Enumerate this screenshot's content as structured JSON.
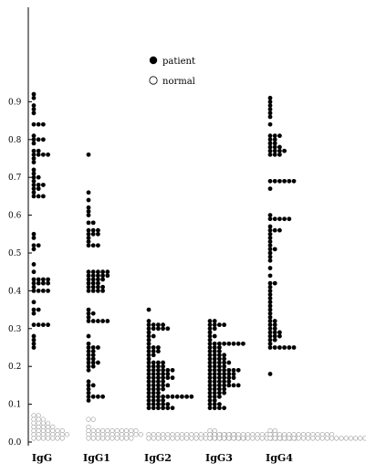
{
  "chart_data": {
    "type": "scatter",
    "subtype": "dot-plot",
    "title": "",
    "xlabel": "",
    "ylabel": "",
    "ylim": [
      0,
      0.95
    ],
    "y_ticks": [
      "0.0",
      "0.1",
      "0.2",
      "0.3",
      "0.4",
      "0.5",
      "0.6",
      "0.7",
      "0.8",
      "0.9"
    ],
    "categories": [
      "IgG",
      "IgG1",
      "IgG2",
      "IgG3",
      "IgG4"
    ],
    "grid": false,
    "legend": {
      "placement": "top-center",
      "entries": [
        "patient",
        "normal"
      ]
    },
    "series": [
      {
        "name": "patient",
        "marker": "filled-circle",
        "color": "#000000",
        "values": {
          "IgG": [
            0.92,
            0.91,
            0.89,
            0.88,
            0.87,
            0.84,
            0.84,
            0.84,
            0.81,
            0.8,
            0.8,
            0.8,
            0.79,
            0.77,
            0.77,
            0.76,
            0.76,
            0.76,
            0.76,
            0.75,
            0.74,
            0.72,
            0.71,
            0.7,
            0.7,
            0.69,
            0.68,
            0.68,
            0.68,
            0.67,
            0.67,
            0.66,
            0.65,
            0.65,
            0.65,
            0.55,
            0.54,
            0.52,
            0.52,
            0.51,
            0.47,
            0.45,
            0.43,
            0.43,
            0.43,
            0.43,
            0.42,
            0.42,
            0.42,
            0.42,
            0.41,
            0.4,
            0.4,
            0.4,
            0.4,
            0.37,
            0.35,
            0.35,
            0.34,
            0.31,
            0.31,
            0.31,
            0.31,
            0.28,
            0.27,
            0.26,
            0.25
          ],
          "IgG1": [
            0.76,
            0.66,
            0.64,
            0.62,
            0.61,
            0.6,
            0.58,
            0.58,
            0.56,
            0.56,
            0.56,
            0.55,
            0.55,
            0.55,
            0.54,
            0.53,
            0.52,
            0.52,
            0.52,
            0.45,
            0.45,
            0.45,
            0.45,
            0.45,
            0.44,
            0.44,
            0.44,
            0.44,
            0.44,
            0.43,
            0.43,
            0.43,
            0.43,
            0.42,
            0.42,
            0.42,
            0.41,
            0.41,
            0.41,
            0.41,
            0.4,
            0.4,
            0.4,
            0.4,
            0.35,
            0.34,
            0.34,
            0.33,
            0.32,
            0.32,
            0.32,
            0.32,
            0.32,
            0.28,
            0.26,
            0.25,
            0.25,
            0.25,
            0.24,
            0.24,
            0.23,
            0.23,
            0.22,
            0.22,
            0.21,
            0.21,
            0.21,
            0.2,
            0.2,
            0.19,
            0.16,
            0.15,
            0.15,
            0.14,
            0.13,
            0.12,
            0.12,
            0.12,
            0.12,
            0.11
          ],
          "IgG2": [
            0.35,
            0.32,
            0.31,
            0.31,
            0.31,
            0.31,
            0.3,
            0.3,
            0.3,
            0.3,
            0.3,
            0.29,
            0.28,
            0.28,
            0.27,
            0.26,
            0.25,
            0.25,
            0.25,
            0.24,
            0.24,
            0.24,
            0.23,
            0.23,
            0.22,
            0.21,
            0.21,
            0.21,
            0.21,
            0.2,
            0.2,
            0.2,
            0.2,
            0.19,
            0.19,
            0.19,
            0.19,
            0.19,
            0.19,
            0.18,
            0.18,
            0.18,
            0.18,
            0.18,
            0.17,
            0.17,
            0.17,
            0.17,
            0.17,
            0.17,
            0.16,
            0.16,
            0.16,
            0.16,
            0.15,
            0.15,
            0.15,
            0.15,
            0.15,
            0.14,
            0.14,
            0.14,
            0.14,
            0.13,
            0.13,
            0.13,
            0.12,
            0.12,
            0.12,
            0.12,
            0.12,
            0.12,
            0.12,
            0.12,
            0.12,
            0.12,
            0.11,
            0.11,
            0.11,
            0.11,
            0.1,
            0.1,
            0.1,
            0.1,
            0.1,
            0.09,
            0.09,
            0.09,
            0.09,
            0.09,
            0.09
          ],
          "IgG3": [
            0.32,
            0.32,
            0.31,
            0.31,
            0.31,
            0.31,
            0.3,
            0.3,
            0.29,
            0.28,
            0.28,
            0.27,
            0.26,
            0.26,
            0.26,
            0.26,
            0.26,
            0.26,
            0.26,
            0.26,
            0.25,
            0.25,
            0.25,
            0.24,
            0.24,
            0.24,
            0.23,
            0.23,
            0.23,
            0.23,
            0.22,
            0.22,
            0.22,
            0.22,
            0.21,
            0.21,
            0.21,
            0.21,
            0.21,
            0.2,
            0.2,
            0.2,
            0.2,
            0.19,
            0.19,
            0.19,
            0.19,
            0.19,
            0.19,
            0.19,
            0.18,
            0.18,
            0.18,
            0.18,
            0.18,
            0.18,
            0.17,
            0.17,
            0.17,
            0.17,
            0.17,
            0.17,
            0.16,
            0.16,
            0.16,
            0.16,
            0.16,
            0.15,
            0.15,
            0.15,
            0.15,
            0.15,
            0.15,
            0.15,
            0.14,
            0.14,
            0.14,
            0.14,
            0.13,
            0.13,
            0.13,
            0.13,
            0.12,
            0.12,
            0.12,
            0.11,
            0.11,
            0.1,
            0.1,
            0.1,
            0.09,
            0.09,
            0.09,
            0.09
          ],
          "IgG4": [
            0.91,
            0.9,
            0.89,
            0.88,
            0.87,
            0.86,
            0.84,
            0.81,
            0.81,
            0.81,
            0.8,
            0.8,
            0.79,
            0.79,
            0.78,
            0.78,
            0.78,
            0.77,
            0.77,
            0.77,
            0.77,
            0.76,
            0.76,
            0.76,
            0.69,
            0.69,
            0.69,
            0.69,
            0.69,
            0.69,
            0.67,
            0.6,
            0.59,
            0.59,
            0.59,
            0.59,
            0.59,
            0.57,
            0.56,
            0.56,
            0.56,
            0.55,
            0.54,
            0.53,
            0.52,
            0.51,
            0.51,
            0.5,
            0.49,
            0.48,
            0.46,
            0.44,
            0.42,
            0.42,
            0.41,
            0.4,
            0.39,
            0.38,
            0.37,
            0.36,
            0.35,
            0.34,
            0.33,
            0.32,
            0.32,
            0.31,
            0.31,
            0.3,
            0.3,
            0.29,
            0.29,
            0.29,
            0.28,
            0.28,
            0.28,
            0.27,
            0.27,
            0.26,
            0.25,
            0.25,
            0.25,
            0.25,
            0.25,
            0.25,
            0.18
          ]
        }
      },
      {
        "name": "normal",
        "marker": "open-circle",
        "color": "#999999",
        "values": {
          "IgG": [
            0.07,
            0.07,
            0.06,
            0.06,
            0.06,
            0.05,
            0.05,
            0.05,
            0.05,
            0.04,
            0.04,
            0.04,
            0.04,
            0.04,
            0.03,
            0.03,
            0.03,
            0.03,
            0.03,
            0.03,
            0.03,
            0.02,
            0.02,
            0.02,
            0.02,
            0.02,
            0.02,
            0.02,
            0.02,
            0.01,
            0.01,
            0.01,
            0.01,
            0.01,
            0.01,
            0.01
          ],
          "IgG1": [
            0.06,
            0.06,
            0.04,
            0.03,
            0.03,
            0.03,
            0.03,
            0.03,
            0.03,
            0.03,
            0.03,
            0.03,
            0.03,
            0.03,
            0.02,
            0.02,
            0.02,
            0.02,
            0.02,
            0.02,
            0.02,
            0.02,
            0.02,
            0.02,
            0.02,
            0.02,
            0.01,
            0.01,
            0.01,
            0.01,
            0.01,
            0.01,
            0.01,
            0.01,
            0.01,
            0.01
          ],
          "IgG2": [
            0.02,
            0.02,
            0.02,
            0.02,
            0.02,
            0.02,
            0.02,
            0.02,
            0.02,
            0.02,
            0.02,
            0.02,
            0.02,
            0.02,
            0.02,
            0.02,
            0.02,
            0.02,
            0.02,
            0.01,
            0.01,
            0.01,
            0.01,
            0.01,
            0.01,
            0.01,
            0.01,
            0.01,
            0.01,
            0.01,
            0.01,
            0.01,
            0.01,
            0.01,
            0.01,
            0.01,
            0.01,
            0.01,
            0.01,
            0.01
          ],
          "IgG3": [
            0.03,
            0.03,
            0.02,
            0.02,
            0.02,
            0.02,
            0.02,
            0.02,
            0.02,
            0.02,
            0.02,
            0.02,
            0.02,
            0.02,
            0.02,
            0.02,
            0.02,
            0.01,
            0.01,
            0.01,
            0.01,
            0.01,
            0.01,
            0.01,
            0.01,
            0.01,
            0.01,
            0.01,
            0.01,
            0.01,
            0.01,
            0.01,
            0.01,
            0.01,
            0.01,
            0.01
          ],
          "IgG4": [
            0.03,
            0.03,
            0.02,
            0.02,
            0.02,
            0.02,
            0.02,
            0.02,
            0.02,
            0.02,
            0.02,
            0.02,
            0.02,
            0.02,
            0.02,
            0.02,
            0.01,
            0.01,
            0.01,
            0.01,
            0.01,
            0.01,
            0.01,
            0.01,
            0.01,
            0.01,
            0.01,
            0.01,
            0.01,
            0.01,
            0.01,
            0.01,
            0.01,
            0.01,
            0.01,
            0.01,
            0.01,
            0.01,
            0.01,
            0.01,
            0.01,
            0.01,
            0.01,
            0.01,
            0.01,
            0.01
          ]
        }
      }
    ]
  }
}
